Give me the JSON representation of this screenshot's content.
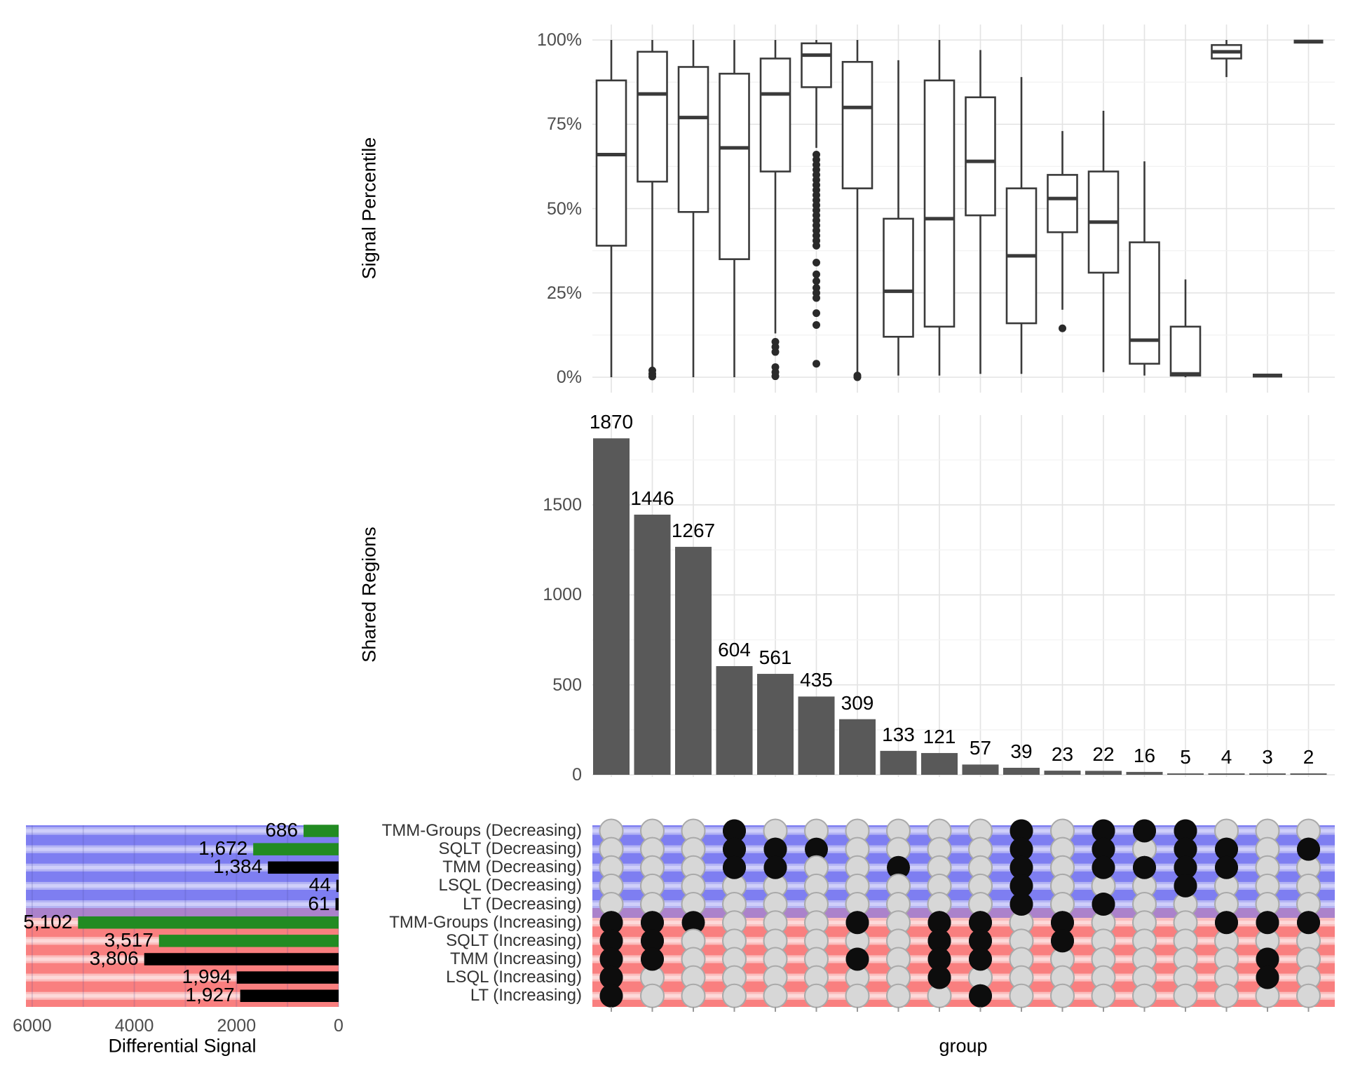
{
  "chart_data": {
    "type": [
      "boxplot",
      "bar",
      "upset-matrix",
      "hbar"
    ],
    "signal_percentile_boxplot": {
      "ylabel": "Signal Percentile",
      "ytick_labels": [
        "0%",
        "25%",
        "50%",
        "75%",
        "100%"
      ],
      "ytick_values": [
        0,
        25,
        50,
        75,
        100
      ],
      "ylim": [
        0,
        100
      ],
      "grid": "on",
      "columns": [
        {
          "low": 0,
          "q1": 39,
          "median": 66,
          "q3": 88,
          "high": 100,
          "outliers": []
        },
        {
          "low": 3,
          "q1": 58,
          "median": 84,
          "q3": 96.5,
          "high": 100,
          "outliers": [
            2,
            1,
            0.2
          ]
        },
        {
          "low": 0,
          "q1": 49,
          "median": 77,
          "q3": 92,
          "high": 100,
          "outliers": []
        },
        {
          "low": 0,
          "q1": 35,
          "median": 68,
          "q3": 90,
          "high": 100,
          "outliers": []
        },
        {
          "low": 13,
          "q1": 61,
          "median": 84,
          "q3": 94.5,
          "high": 100,
          "outliers": [
            10.5,
            9,
            7.5,
            3,
            1.5,
            0.3
          ]
        },
        {
          "low": 68,
          "q1": 86,
          "median": 95.5,
          "q3": 99,
          "high": 100,
          "outliers": [
            66,
            64.5,
            63,
            61.5,
            60,
            58.5,
            57,
            55.5,
            54,
            52.5,
            51,
            49.5,
            48,
            46.5,
            45,
            43.5,
            42,
            40.5,
            39,
            34,
            30.5,
            28.5,
            26.5,
            25,
            23.5,
            19,
            15.5,
            4
          ]
        },
        {
          "low": 1,
          "q1": 56,
          "median": 80,
          "q3": 93.5,
          "high": 100,
          "outliers": [
            0.5,
            0
          ]
        },
        {
          "low": 0.5,
          "q1": 12,
          "median": 25.5,
          "q3": 47,
          "high": 94,
          "outliers": []
        },
        {
          "low": 0.5,
          "q1": 15,
          "median": 47,
          "q3": 88,
          "high": 100,
          "outliers": []
        },
        {
          "low": 1,
          "q1": 48,
          "median": 64,
          "q3": 83,
          "high": 97,
          "outliers": []
        },
        {
          "low": 1,
          "q1": 16,
          "median": 36,
          "q3": 56,
          "high": 89,
          "outliers": []
        },
        {
          "low": 20,
          "q1": 43,
          "median": 53,
          "q3": 60,
          "high": 73,
          "outliers": [
            14.5
          ]
        },
        {
          "low": 1.5,
          "q1": 31,
          "median": 46,
          "q3": 61,
          "high": 79,
          "outliers": []
        },
        {
          "low": 0.5,
          "q1": 4,
          "median": 11,
          "q3": 40,
          "high": 64,
          "outliers": []
        },
        {
          "low": 0,
          "q1": 0.5,
          "median": 1,
          "q3": 15,
          "high": 29,
          "outliers": []
        },
        {
          "low": 89,
          "q1": 94.5,
          "median": 96.5,
          "q3": 98.5,
          "high": 100,
          "outliers": []
        },
        {
          "low": 0.5,
          "q1": 0.5,
          "median": 0.5,
          "q3": 0.5,
          "high": 0.5,
          "outliers": []
        },
        {
          "low": 99.5,
          "q1": 99.5,
          "median": 99.5,
          "q3": 99.5,
          "high": 99.5,
          "outliers": []
        }
      ]
    },
    "shared_regions_bar": {
      "ylabel": "Shared Regions",
      "ytick_labels": [
        "0",
        "500",
        "1000",
        "1500"
      ],
      "ytick_values": [
        0,
        500,
        1000,
        1500
      ],
      "ylim": [
        0,
        1870
      ],
      "grid": "on",
      "values": [
        1870,
        1446,
        1267,
        604,
        561,
        435,
        309,
        133,
        121,
        57,
        39,
        23,
        22,
        16,
        5,
        4,
        3,
        2
      ]
    },
    "differential_signal_bar": {
      "xlabel": "Differential Signal",
      "xtick_labels": [
        "6000",
        "4000",
        "2000",
        "0"
      ],
      "xtick_values": [
        6000,
        4000,
        2000,
        0
      ],
      "xlim": [
        6120,
        0
      ],
      "direction": "right-to-left",
      "bars": [
        {
          "label": "686",
          "value": 686,
          "color": "green"
        },
        {
          "label": "1,672",
          "value": 1672,
          "color": "green"
        },
        {
          "label": "1,384",
          "value": 1384,
          "color": "black"
        },
        {
          "label": "44",
          "value": 44,
          "color": "black"
        },
        {
          "label": "61",
          "value": 61,
          "color": "black"
        },
        {
          "label": "5,102",
          "value": 5102,
          "color": "green"
        },
        {
          "label": "3,517",
          "value": 3517,
          "color": "green"
        },
        {
          "label": "3,806",
          "value": 3806,
          "color": "black"
        },
        {
          "label": "1,994",
          "value": 1994,
          "color": "black"
        },
        {
          "label": "1,927",
          "value": 1927,
          "color": "black"
        }
      ]
    },
    "membership_matrix": {
      "xlabel": "group",
      "rows": [
        "TMM-Groups (Decreasing)",
        "SQLT (Decreasing)",
        "TMM (Decreasing)",
        "LSQL (Decreasing)",
        "LT (Decreasing)",
        "TMM-Groups (Increasing)",
        "SQLT (Increasing)",
        "TMM (Increasing)",
        "LSQL (Increasing)",
        "LT (Increasing)"
      ],
      "columns": [
        {
          "size": 1870,
          "sets": [
            "TMM-Groups (Increasing)",
            "SQLT (Increasing)",
            "TMM (Increasing)",
            "LSQL (Increasing)",
            "LT (Increasing)"
          ]
        },
        {
          "size": 1446,
          "sets": [
            "TMM-Groups (Increasing)",
            "SQLT (Increasing)",
            "TMM (Increasing)"
          ]
        },
        {
          "size": 1267,
          "sets": [
            "TMM-Groups (Increasing)"
          ]
        },
        {
          "size": 604,
          "sets": [
            "TMM-Groups (Decreasing)",
            "SQLT (Decreasing)",
            "TMM (Decreasing)"
          ]
        },
        {
          "size": 561,
          "sets": [
            "SQLT (Decreasing)",
            "TMM (Decreasing)"
          ]
        },
        {
          "size": 435,
          "sets": [
            "SQLT (Decreasing)"
          ]
        },
        {
          "size": 309,
          "sets": [
            "TMM-Groups (Increasing)",
            "TMM (Increasing)"
          ]
        },
        {
          "size": 133,
          "sets": [
            "TMM (Decreasing)"
          ]
        },
        {
          "size": 121,
          "sets": [
            "TMM-Groups (Increasing)",
            "SQLT (Increasing)",
            "TMM (Increasing)",
            "LSQL (Increasing)"
          ]
        },
        {
          "size": 57,
          "sets": [
            "TMM-Groups (Increasing)",
            "SQLT (Increasing)",
            "TMM (Increasing)",
            "LT (Increasing)"
          ]
        },
        {
          "size": 39,
          "sets": [
            "TMM-Groups (Decreasing)",
            "SQLT (Decreasing)",
            "TMM (Decreasing)",
            "LSQL (Decreasing)",
            "LT (Decreasing)"
          ]
        },
        {
          "size": 23,
          "sets": [
            "TMM-Groups (Increasing)",
            "SQLT (Increasing)"
          ]
        },
        {
          "size": 22,
          "sets": [
            "TMM-Groups (Decreasing)",
            "SQLT (Decreasing)",
            "TMM (Decreasing)",
            "LT (Decreasing)"
          ]
        },
        {
          "size": 16,
          "sets": [
            "TMM-Groups (Decreasing)",
            "TMM (Decreasing)"
          ]
        },
        {
          "size": 5,
          "sets": [
            "TMM-Groups (Decreasing)",
            "SQLT (Decreasing)",
            "TMM (Decreasing)",
            "LSQL (Decreasing)"
          ]
        },
        {
          "size": 4,
          "sets": [
            "SQLT (Decreasing)",
            "TMM (Decreasing)",
            "TMM-Groups (Increasing)"
          ]
        },
        {
          "size": 3,
          "sets": [
            "TMM-Groups (Increasing)",
            "TMM (Increasing)",
            "LSQL (Increasing)"
          ]
        },
        {
          "size": 2,
          "sets": [
            "SQLT (Decreasing)",
            "TMM-Groups (Increasing)"
          ]
        }
      ]
    },
    "colors": {
      "bar_gray": "#595959",
      "box_stroke": "#3a3a3a",
      "green_bar": "#228b22",
      "black_bar": "#000000",
      "dot_filled": "#0d0d0d",
      "dot_empty": "#d7d7d7",
      "dot_empty_border": "#a9a9a9",
      "stripe_blue_medium": "#7e7ef1",
      "stripe_blue_light": "#b4b4f4",
      "stripe_blue_pale": "#cfcffa",
      "stripe_red_medium": "#f97f7f",
      "stripe_red_light": "#fbbdbd",
      "stripe_red_pale": "#fdd9d9",
      "purple_band": "#ab82cb",
      "grid_major": "#e3e3e3",
      "grid_minor": "#f2f2f2",
      "tick_text": "#4d4d4d"
    }
  }
}
